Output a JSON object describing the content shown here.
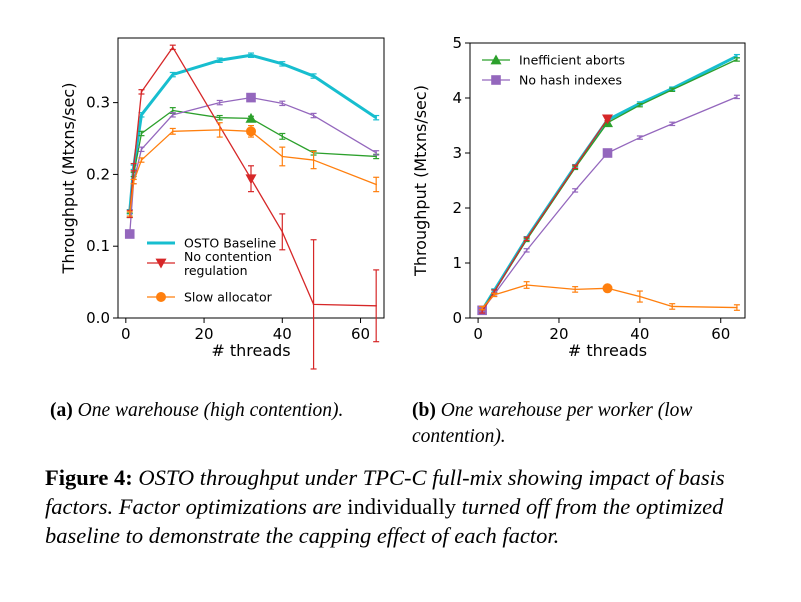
{
  "chart_data": [
    {
      "type": "line",
      "xlabel": "# threads",
      "ylabel": "Throughput (Mtxns/sec)",
      "xlim": [
        -2,
        66
      ],
      "ylim": [
        0,
        0.39
      ],
      "xticks": [
        0,
        20,
        40,
        60
      ],
      "yticks": [
        0.0,
        0.1,
        0.2,
        0.3
      ],
      "ytick_labels": [
        "0.0",
        "0.1",
        "0.2",
        "0.3"
      ],
      "grid": false,
      "legend_position": "lower-right",
      "series": [
        {
          "name": "OSTO Baseline",
          "color": "#17becf",
          "marker": "none",
          "width": 3,
          "x": [
            1,
            2,
            4,
            12,
            24,
            32,
            40,
            48,
            64
          ],
          "y": [
            0.148,
            0.21,
            0.283,
            0.339,
            0.359,
            0.366,
            0.354,
            0.337,
            0.279
          ],
          "err": [
            0.003,
            0.003,
            0.003,
            0.003,
            0.003,
            0.003,
            0.003,
            0.003,
            0.003
          ],
          "markers_at": []
        },
        {
          "name": "Inefficient aborts",
          "color": "#2ca02c",
          "marker": "triangle",
          "width": 1.3,
          "x": [
            1,
            2,
            4,
            12,
            24,
            32,
            40,
            48,
            64
          ],
          "y": [
            0.143,
            0.2,
            0.257,
            0.289,
            0.279,
            0.278,
            0.253,
            0.23,
            0.225
          ],
          "err": [
            0.003,
            0.003,
            0.003,
            0.004,
            0.003,
            0.003,
            0.004,
            0.003,
            0.003
          ],
          "markers_at": [
            32
          ]
        },
        {
          "name": "No hash indexes",
          "color": "#9467bd",
          "marker": "square",
          "width": 1.3,
          "x": [
            1,
            2,
            4,
            12,
            24,
            32,
            40,
            48,
            64
          ],
          "y": [
            0.117,
            0.19,
            0.235,
            0.283,
            0.3,
            0.307,
            0.299,
            0.282,
            0.23
          ],
          "err": [
            0.003,
            0.003,
            0.003,
            0.003,
            0.003,
            0.003,
            0.003,
            0.003,
            0.003
          ],
          "markers_at": [
            1,
            32
          ]
        },
        {
          "name": "No contention regulation",
          "color": "#d62728",
          "marker": "triangle-down",
          "width": 1.3,
          "x": [
            1,
            2,
            4,
            12,
            32,
            40,
            48,
            64
          ],
          "y": [
            0.145,
            0.21,
            0.315,
            0.377,
            0.194,
            0.12,
            0.019,
            0.017
          ],
          "err": [
            0.005,
            0.005,
            0.003,
            0.003,
            0.018,
            0.025,
            0.09,
            0.05
          ],
          "markers_at": [
            32
          ]
        },
        {
          "name": "Slow allocator",
          "color": "#ff7f0e",
          "marker": "circle",
          "width": 1.3,
          "x": [
            1,
            2,
            4,
            12,
            24,
            32,
            40,
            48,
            64
          ],
          "y": [
            0.145,
            0.19,
            0.22,
            0.26,
            0.262,
            0.26,
            0.225,
            0.22,
            0.186
          ],
          "err": [
            0.003,
            0.003,
            0.003,
            0.004,
            0.01,
            0.008,
            0.013,
            0.012,
            0.01
          ],
          "markers_at": [
            32
          ]
        }
      ],
      "legend": [
        "OSTO Baseline",
        "No contention regulation",
        "Slow allocator"
      ],
      "legend_wrapped": [
        "No contention",
        "regulation"
      ]
    },
    {
      "type": "line",
      "xlabel": "# threads",
      "ylabel": "Throughput (Mtxns/sec)",
      "xlim": [
        -2,
        66
      ],
      "ylim": [
        0,
        5
      ],
      "xticks": [
        0,
        20,
        40,
        60
      ],
      "yticks": [
        0,
        1,
        2,
        3,
        4,
        5
      ],
      "ytick_labels": [
        "0",
        "1",
        "2",
        "3",
        "4",
        "5"
      ],
      "grid": false,
      "legend_position": "top-left",
      "series": [
        {
          "name": "OSTO Baseline",
          "color": "#17becf",
          "marker": "none",
          "width": 3,
          "x": [
            1,
            4,
            12,
            24,
            32,
            40,
            48,
            64
          ],
          "y": [
            0.14,
            0.5,
            1.45,
            2.76,
            3.6,
            3.9,
            4.17,
            4.76
          ],
          "err": [
            0.03,
            0.03,
            0.03,
            0.03,
            0.03,
            0.03,
            0.03,
            0.03
          ],
          "markers_at": []
        },
        {
          "name": "Inefficient aborts",
          "color": "#2ca02c",
          "marker": "triangle",
          "width": 1.3,
          "x": [
            1,
            4,
            12,
            24,
            32,
            40,
            48,
            64
          ],
          "y": [
            0.14,
            0.48,
            1.42,
            2.73,
            3.55,
            3.87,
            4.15,
            4.7
          ],
          "err": [
            0.03,
            0.03,
            0.03,
            0.03,
            0.03,
            0.03,
            0.03,
            0.03
          ],
          "markers_at": [
            32
          ]
        },
        {
          "name": "No hash indexes",
          "color": "#9467bd",
          "marker": "square",
          "width": 1.3,
          "x": [
            1,
            4,
            12,
            24,
            32,
            40,
            48,
            64
          ],
          "y": [
            0.14,
            0.43,
            1.23,
            2.32,
            3.0,
            3.28,
            3.53,
            4.02
          ],
          "err": [
            0.03,
            0.03,
            0.03,
            0.03,
            0.03,
            0.03,
            0.03,
            0.03
          ],
          "markers_at": [
            1,
            32
          ]
        },
        {
          "name": "No contention regulation",
          "color": "#d62728",
          "marker": "triangle-down",
          "width": 1.3,
          "x": [
            1,
            4,
            12,
            24,
            32
          ],
          "y": [
            0.12,
            0.48,
            1.44,
            2.75,
            3.62
          ],
          "err": [
            0.03,
            0.03,
            0.03,
            0.03,
            0.03
          ],
          "markers_at": [
            32
          ]
        },
        {
          "name": "Slow allocator",
          "color": "#ff7f0e",
          "marker": "circle",
          "width": 1.3,
          "x": [
            1,
            4,
            12,
            24,
            32,
            40,
            48,
            64
          ],
          "y": [
            0.18,
            0.42,
            0.6,
            0.52,
            0.54,
            0.39,
            0.21,
            0.19
          ],
          "err": [
            0.03,
            0.03,
            0.06,
            0.05,
            0.03,
            0.1,
            0.05,
            0.05
          ],
          "markers_at": [
            32
          ]
        }
      ],
      "legend": [
        "Inefficient aborts",
        "No hash indexes"
      ],
      "legend_wrapped": []
    }
  ],
  "subcaptions": {
    "a_label": "(a)",
    "a_text": "One warehouse (high contention).",
    "b_label": "(b)",
    "b_text": "One warehouse per worker (low contention)."
  },
  "caption": {
    "lead": "Figure 4:",
    "p1": "OSTO throughput under TPC-C full-mix showing impact of basis factors. Factor optimizations are",
    "p2": "individually",
    "p3": "turned off from the optimized baseline to demonstrate the capping effect of each factor."
  }
}
